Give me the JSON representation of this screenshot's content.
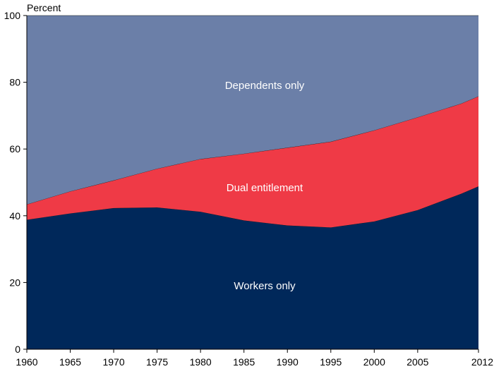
{
  "chart_data": {
    "type": "area",
    "stacked": true,
    "ylabel": "Percent",
    "xlabel": "",
    "title": "",
    "x": [
      1960,
      1965,
      1970,
      1975,
      1980,
      1985,
      1990,
      1995,
      2000,
      2005,
      2010,
      2012
    ],
    "x_ticks": [
      "1960",
      "1965",
      "1970",
      "1975",
      "1980",
      "1985",
      "1990",
      "1995",
      "2000",
      "2005",
      "2012"
    ],
    "y_ticks": [
      "0",
      "20",
      "40",
      "60",
      "80",
      "100"
    ],
    "ylim": [
      0,
      100
    ],
    "xlim": [
      1960,
      2012
    ],
    "grid": false,
    "series": [
      {
        "name": "Workers only",
        "color": "#00285a",
        "values": [
          38.8,
          40.7,
          42.3,
          42.5,
          41.2,
          38.6,
          37.1,
          36.5,
          38.3,
          41.7,
          46.6,
          48.8
        ]
      },
      {
        "name": "Dual entitlement",
        "color": "#ef3a46",
        "values": [
          4.6,
          6.6,
          8.3,
          11.6,
          15.8,
          20.0,
          23.3,
          25.7,
          27.3,
          27.8,
          27.0,
          27.0
        ]
      },
      {
        "name": "Dependents only",
        "color": "#6b7fa8",
        "values": [
          56.6,
          52.7,
          49.4,
          45.9,
          43.0,
          41.4,
          39.6,
          37.8,
          34.4,
          30.5,
          26.4,
          24.2
        ]
      }
    ]
  }
}
